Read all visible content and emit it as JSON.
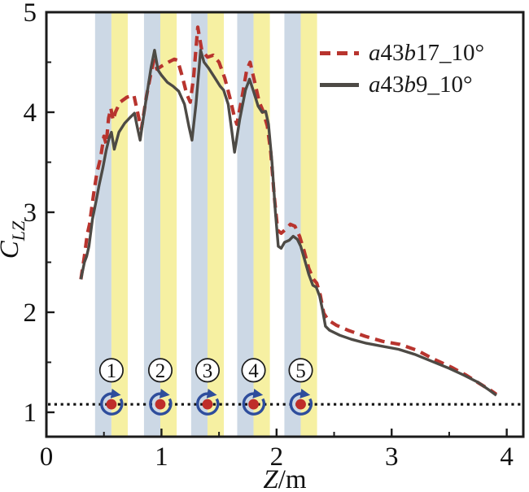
{
  "chart_data": {
    "type": "line",
    "title": "",
    "xlabel_main": "Z",
    "xlabel_unit": "/m",
    "ylabel_main": "C",
    "ylabel_sub": "LZ",
    "xlim": [
      0,
      4.144
    ],
    "ylim": [
      0.756,
      5
    ],
    "x_major_ticks": [
      0,
      1,
      2,
      3,
      4
    ],
    "x_minor_ticks": [
      0.5,
      1.5,
      2.5,
      3.5
    ],
    "y_major_ticks": [
      1,
      2,
      3,
      4,
      5
    ],
    "y_minor_ticks": [
      1.5,
      2.5,
      3.5,
      4.5
    ],
    "grid": false,
    "legend_position": "top-right",
    "axis_color": "#1b1b1b",
    "baseline": {
      "y": 1.08,
      "style": "dotted",
      "color": "#111111"
    },
    "bands": {
      "centers": [
        0.565,
        0.99,
        1.4,
        1.8,
        2.21
      ],
      "half_width": 0.142,
      "left_color": "#ccd8e5",
      "right_color": "#f6f0a2"
    },
    "markers": {
      "y": 1.08,
      "label_y": 1.42,
      "labels": [
        "1",
        "2",
        "3",
        "4",
        "5"
      ],
      "dot_color": "#bf2e2a",
      "ring_color": "#2e4d9c",
      "number_circle_color": "#1a1a1a"
    },
    "series": [
      {
        "name": "a43b17_10°",
        "name_a": "a",
        "name_num": "43",
        "name_b": "b",
        "name_suffix": "17_10°",
        "style": "dashed",
        "color": "#b8342e",
        "x": [
          0.3,
          0.33,
          0.355,
          0.375,
          0.41,
          0.44,
          0.47,
          0.5,
          0.52,
          0.54,
          0.56,
          0.58,
          0.6,
          0.64,
          0.7,
          0.76,
          0.8,
          0.825,
          0.87,
          0.91,
          0.935,
          0.96,
          1.0,
          1.06,
          1.11,
          1.14,
          1.18,
          1.22,
          1.25,
          1.28,
          1.315,
          1.35,
          1.4,
          1.45,
          1.5,
          1.55,
          1.6,
          1.63,
          1.655,
          1.7,
          1.74,
          1.77,
          1.81,
          1.85,
          1.88,
          1.92,
          1.95,
          1.98,
          2.01,
          2.04,
          2.08,
          2.12,
          2.16,
          2.2,
          2.24,
          2.28,
          2.32,
          2.35,
          2.38,
          2.41,
          2.45,
          2.52,
          2.62,
          2.77,
          2.92,
          3.07,
          3.22,
          3.37,
          3.52,
          3.65,
          3.76,
          3.86,
          3.91
        ],
        "y": [
          2.33,
          2.56,
          2.78,
          2.88,
          3.18,
          3.4,
          3.54,
          3.76,
          3.68,
          3.94,
          4.04,
          3.92,
          4.0,
          4.1,
          4.15,
          4.17,
          3.96,
          3.83,
          4.16,
          4.4,
          4.52,
          4.43,
          4.46,
          4.5,
          4.53,
          4.52,
          4.36,
          4.18,
          4.1,
          4.36,
          4.85,
          4.62,
          4.55,
          4.57,
          4.5,
          4.34,
          4.12,
          3.97,
          3.88,
          4.15,
          4.42,
          4.5,
          4.3,
          4.1,
          4.02,
          3.86,
          3.6,
          3.16,
          2.82,
          2.79,
          2.83,
          2.88,
          2.86,
          2.76,
          2.61,
          2.44,
          2.33,
          2.29,
          2.17,
          1.99,
          1.92,
          1.87,
          1.82,
          1.76,
          1.71,
          1.68,
          1.62,
          1.53,
          1.45,
          1.37,
          1.29,
          1.22,
          1.18
        ]
      },
      {
        "name": "a43b9_10°",
        "name_a": "a",
        "name_num": "43",
        "name_b": "b",
        "name_suffix": "9_10°",
        "style": "solid",
        "color": "#4d4a45",
        "x": [
          0.3,
          0.33,
          0.35,
          0.37,
          0.4,
          0.43,
          0.46,
          0.49,
          0.52,
          0.545,
          0.565,
          0.59,
          0.63,
          0.68,
          0.73,
          0.765,
          0.79,
          0.815,
          0.86,
          0.91,
          0.94,
          0.97,
          1.0,
          1.05,
          1.1,
          1.15,
          1.2,
          1.24,
          1.265,
          1.3,
          1.34,
          1.37,
          1.41,
          1.46,
          1.51,
          1.54,
          1.58,
          1.61,
          1.635,
          1.68,
          1.73,
          1.765,
          1.8,
          1.84,
          1.875,
          1.905,
          1.93,
          1.96,
          1.99,
          2.015,
          2.04,
          2.07,
          2.11,
          2.145,
          2.18,
          2.21,
          2.24,
          2.28,
          2.315,
          2.345,
          2.375,
          2.4,
          2.425,
          2.46,
          2.55,
          2.65,
          2.78,
          2.92,
          3.06,
          3.2,
          3.35,
          3.5,
          3.63,
          3.75,
          3.85,
          3.91
        ],
        "y": [
          2.33,
          2.5,
          2.56,
          2.66,
          2.93,
          3.1,
          3.28,
          3.44,
          3.62,
          3.74,
          3.8,
          3.63,
          3.8,
          3.89,
          3.95,
          3.99,
          3.85,
          3.72,
          4.08,
          4.45,
          4.62,
          4.42,
          4.37,
          4.3,
          4.26,
          4.21,
          4.08,
          3.85,
          3.72,
          4.08,
          4.62,
          4.5,
          4.44,
          4.35,
          4.26,
          4.22,
          4.08,
          3.82,
          3.6,
          3.93,
          4.22,
          4.33,
          4.21,
          4.06,
          4.0,
          4.01,
          3.88,
          3.5,
          3.0,
          2.66,
          2.64,
          2.7,
          2.72,
          2.76,
          2.73,
          2.66,
          2.54,
          2.38,
          2.27,
          2.25,
          2.16,
          2.02,
          1.86,
          1.82,
          1.77,
          1.73,
          1.69,
          1.66,
          1.63,
          1.58,
          1.51,
          1.44,
          1.37,
          1.3,
          1.22,
          1.17
        ]
      }
    ]
  },
  "legend": {
    "items": [
      {
        "a": "a",
        "num": "43",
        "b": "b",
        "suffix": "17_10°"
      },
      {
        "a": "a",
        "num": "43",
        "b": "b",
        "suffix": "9_10°"
      }
    ]
  }
}
